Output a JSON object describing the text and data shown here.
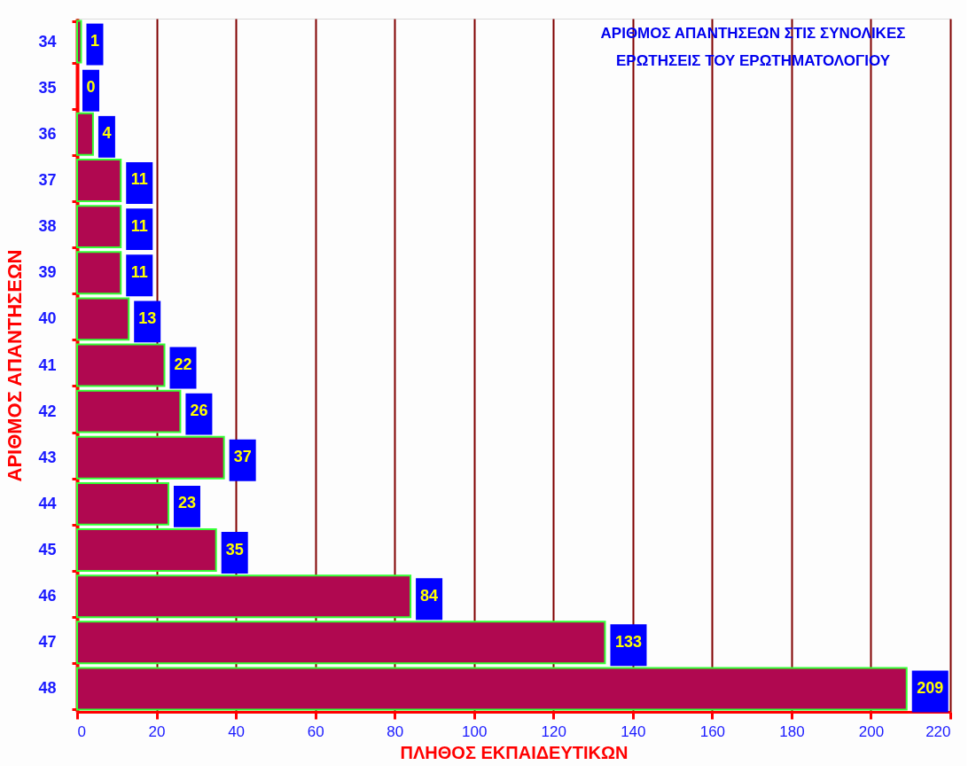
{
  "chart_data": {
    "type": "bar",
    "orientation": "horizontal",
    "title": "ΑΡΙΘΜΟΣ ΑΠΑΝΤΗΣΕΩΝ ΣΤΙΣ ΣΥΝΟΛΙΚΕΣ ΕΡΩΤΗΣΕΙΣ ΤΟΥ ΕΡΩΤΗΜΑΤΟΛΟΓΙΟΥ",
    "xlabel": "ΠΛΗΘΟΣ ΕΚΠΑΙΔΕΥΤΙΚΩΝ",
    "ylabel": "ΑΡΙΘΜΟΣ ΑΠΑΝΤΗΣΕΩΝ",
    "categories": [
      "34",
      "35",
      "36",
      "37",
      "38",
      "39",
      "40",
      "41",
      "42",
      "43",
      "44",
      "45",
      "46",
      "47",
      "48"
    ],
    "values": [
      1,
      0,
      4,
      11,
      11,
      11,
      13,
      22,
      26,
      37,
      23,
      35,
      84,
      133,
      209
    ],
    "color": "#b00850",
    "xlim": [
      0,
      220
    ],
    "xticks": [
      0,
      20,
      40,
      60,
      80,
      100,
      120,
      140,
      160,
      180,
      200,
      220
    ],
    "grid": "x",
    "data_labels": true
  }
}
